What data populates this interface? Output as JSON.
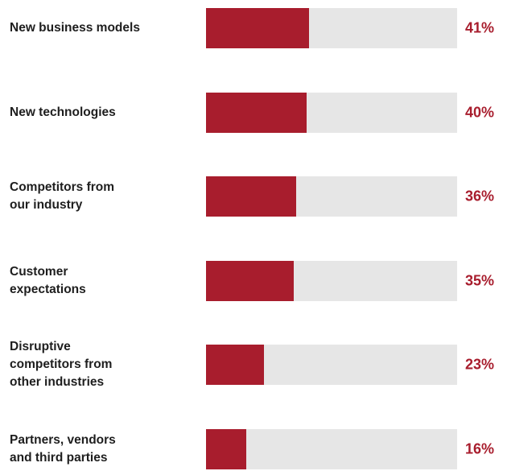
{
  "chart_data": {
    "type": "bar",
    "orientation": "horizontal",
    "categories": [
      "New business models",
      "New technologies",
      "Competitors from\nour industry",
      "Customer\nexpectations",
      "Disruptive\ncompetitors from\nother industries",
      "Partners, vendors\nand third parties"
    ],
    "values": [
      41,
      40,
      36,
      35,
      23,
      16
    ],
    "value_labels": [
      "41%",
      "40%",
      "36%",
      "35%",
      "23%",
      "16%"
    ],
    "color": "#a81d2d",
    "track_color": "#e6e6e6",
    "label_color": "#a81d2d",
    "xlim": [
      0,
      100
    ]
  }
}
